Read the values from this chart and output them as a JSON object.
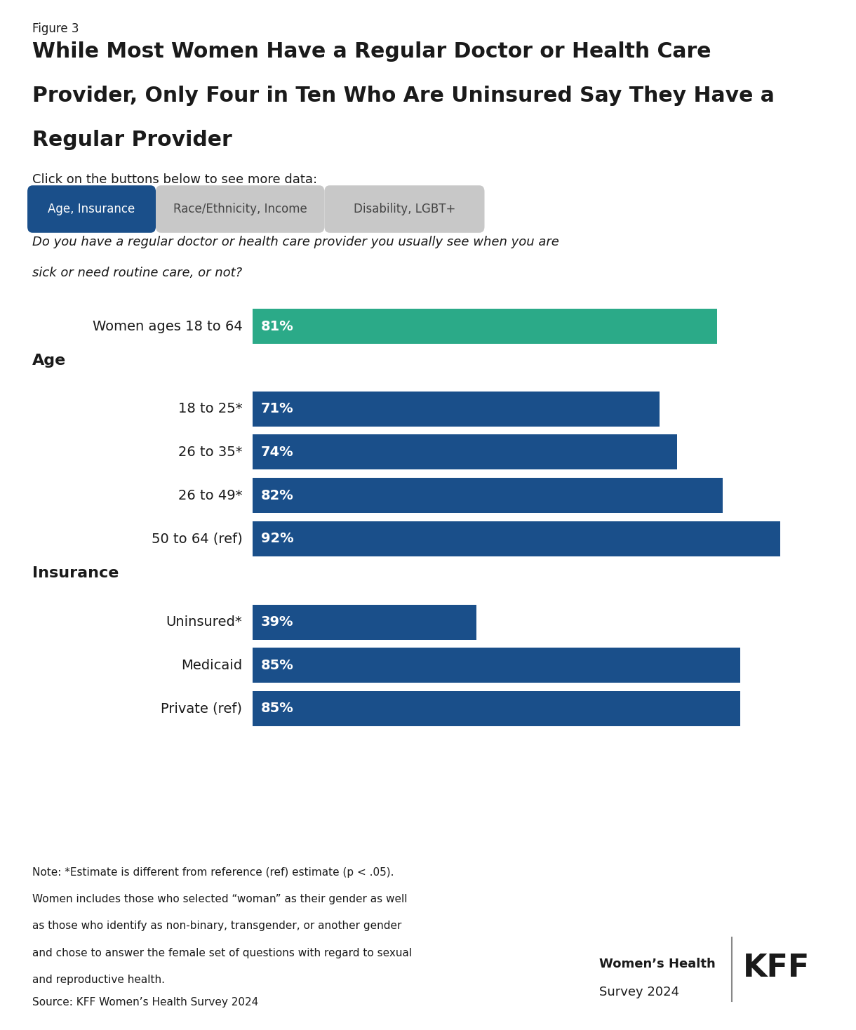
{
  "figure_label": "Figure 3",
  "title_line1": "While Most Women Have a Regular Doctor or Health Care",
  "title_line2": "Provider, Only Four in Ten Who Are Uninsured Say They Have a",
  "title_line3": "Regular Provider",
  "subtitle_click": "Click on the buttons below to see more data:",
  "buttons": [
    "Age, Insurance",
    "Race/Ethnicity, Income",
    "Disability, LGBT+"
  ],
  "button_active_color": "#1A4F8A",
  "button_inactive_color": "#C8C8C8",
  "question_line1": "Do you have a regular doctor or health care provider you usually see when you are",
  "question_line2": "sick or need routine care, or not?",
  "overall_label": "Women ages 18 to 64",
  "overall_value": 81,
  "overall_color": "#2BAA88",
  "bar_color_main": "#1A4F8A",
  "rows": [
    {
      "label": "Women ages 18 to 64",
      "value": 81,
      "type": "overall"
    },
    {
      "label": "Age",
      "value": null,
      "type": "section"
    },
    {
      "label": "18 to 25*",
      "value": 71,
      "type": "bar"
    },
    {
      "label": "26 to 35*",
      "value": 74,
      "type": "bar"
    },
    {
      "label": "26 to 49*",
      "value": 82,
      "type": "bar"
    },
    {
      "label": "50 to 64 (ref)",
      "value": 92,
      "type": "bar"
    },
    {
      "label": "Insurance",
      "value": null,
      "type": "section"
    },
    {
      "label": "Uninsured*",
      "value": 39,
      "type": "bar"
    },
    {
      "label": "Medicaid",
      "value": 85,
      "type": "bar"
    },
    {
      "label": "Private (ref)",
      "value": 85,
      "type": "bar"
    }
  ],
  "note_line1": "Note: *Estimate is different from reference (ref) estimate (p < .05).",
  "note_line2": "Women includes those who selected “woman” as their gender as well",
  "note_line3": "as those who identify as non-binary, transgender, or another gender",
  "note_line4": "and chose to answer the female set of questions with regard to sexual",
  "note_line5": "and reproductive health.",
  "source": "Source: KFF Women’s Health Survey 2024",
  "brand_line1": "Women’s Health",
  "brand_line2": "Survey 2024",
  "background_color": "#FFFFFF",
  "text_color": "#1a1a1a"
}
